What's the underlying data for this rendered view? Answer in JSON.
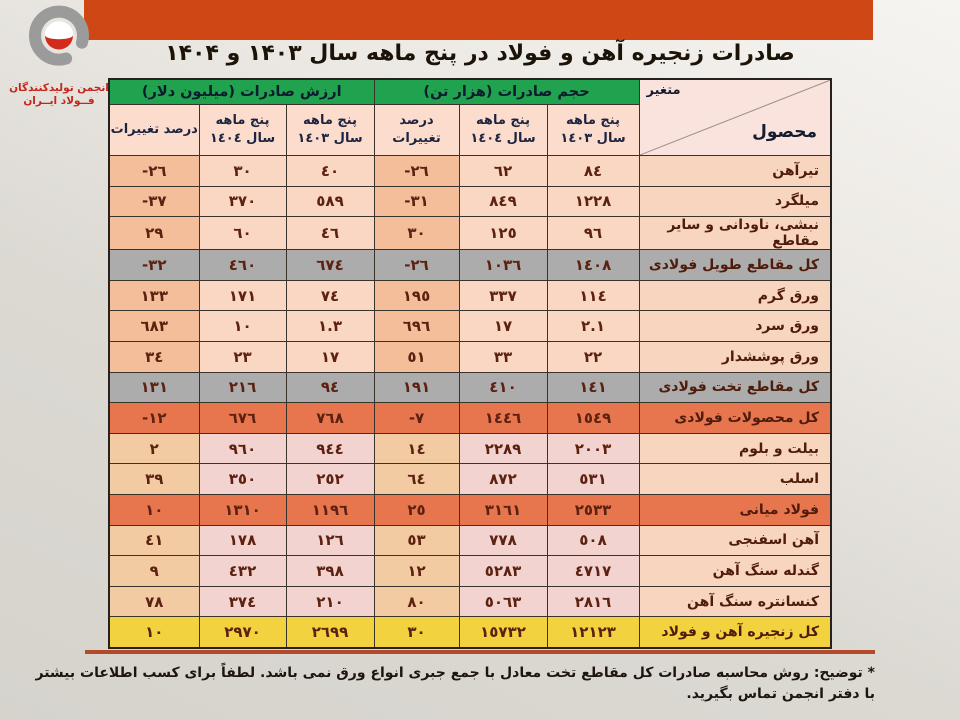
{
  "logo": {
    "line1": "انجمن تولیدکنندگان",
    "line2": "فــولاد ایــران"
  },
  "title": "صادرات زنجیره آهن و فولاد در پنج ماهه سال ۱۴۰۳ و ۱۴۰۴",
  "colors": {
    "banner_orange": "#ce4715",
    "header_green": "#21a24f",
    "subtotal_gray": "#acacac",
    "total_orange": "#e7764e",
    "grand_total_yellow": "#f2d23e",
    "cell_peach": "#f9d7c2",
    "cell_pct_orange": "#f4be9a"
  },
  "table": {
    "corner": {
      "variable": "متغیر",
      "product": "محصول"
    },
    "groups": [
      {
        "label": "حجم صادرات (هزار تن)"
      },
      {
        "label": "ارزش صادرات (میلیون دلار)"
      }
    ],
    "subheaders": {
      "period": "پنج ماهه",
      "year_1403": "سال ١٤٠٣",
      "year_1404": "سال ١٤٠٤",
      "pct": "درصد تغییرات"
    },
    "rows": [
      {
        "name": "تیرآهن",
        "vol_1403": "٨٤",
        "vol_1404": "٦٢",
        "vol_pct": "-٢٦",
        "val_1403": "٤٠",
        "val_1404": "٣٠",
        "val_pct": "-٢٦",
        "style": "regular"
      },
      {
        "name": "میلگرد",
        "vol_1403": "١٢٢٨",
        "vol_1404": "٨٤٩",
        "vol_pct": "-٣١",
        "val_1403": "٥٨٩",
        "val_1404": "٣٧٠",
        "val_pct": "-٣٧",
        "style": "regular"
      },
      {
        "name": "نبشی، ناودانی و سایر مقاطع",
        "vol_1403": "٩٦",
        "vol_1404": "١٢٥",
        "vol_pct": "٣٠",
        "val_1403": "٤٦",
        "val_1404": "٦٠",
        "val_pct": "٢٩",
        "style": "regular"
      },
      {
        "name": "کل مقاطع طویل فولادی",
        "vol_1403": "١٤٠٨",
        "vol_1404": "١٠٣٦",
        "vol_pct": "-٢٦",
        "val_1403": "٦٧٤",
        "val_1404": "٤٦٠",
        "val_pct": "-٣٢",
        "style": "gray"
      },
      {
        "name": "ورق گرم",
        "vol_1403": "١١٤",
        "vol_1404": "٣٣٧",
        "vol_pct": "١٩٥",
        "val_1403": "٧٤",
        "val_1404": "١٧١",
        "val_pct": "١٣٣",
        "style": "regular"
      },
      {
        "name": "ورق سرد",
        "vol_1403": "٢.١",
        "vol_1404": "١٧",
        "vol_pct": "٦٩٦",
        "val_1403": "١.٣",
        "val_1404": "١٠",
        "val_pct": "٦٨٣",
        "style": "regular"
      },
      {
        "name": "ورق پوششدار",
        "vol_1403": "٢٢",
        "vol_1404": "٣٣",
        "vol_pct": "٥١",
        "val_1403": "١٧",
        "val_1404": "٢٣",
        "val_pct": "٣٤",
        "style": "regular"
      },
      {
        "name": "کل مقاطع تخت فولادی",
        "vol_1403": "١٤١",
        "vol_1404": "٤١٠",
        "vol_pct": "١٩١",
        "val_1403": "٩٤",
        "val_1404": "٢١٦",
        "val_pct": "١٣١",
        "style": "gray"
      },
      {
        "name": "کل محصولات فولادی",
        "vol_1403": "١٥٤٩",
        "vol_1404": "١٤٤٦",
        "vol_pct": "-٧",
        "val_1403": "٧٦٨",
        "val_1404": "٦٧٦",
        "val_pct": "-١٢",
        "style": "orange"
      },
      {
        "name": "بیلت و بلوم",
        "vol_1403": "٢٠٠٣",
        "vol_1404": "٢٢٨٩",
        "vol_pct": "١٤",
        "val_1403": "٩٤٤",
        "val_1404": "٩٦٠",
        "val_pct": "٢",
        "style": "pink"
      },
      {
        "name": "اسلب",
        "vol_1403": "٥٣١",
        "vol_1404": "٨٧٢",
        "vol_pct": "٦٤",
        "val_1403": "٢٥٢",
        "val_1404": "٣٥٠",
        "val_pct": "٣٩",
        "style": "pink"
      },
      {
        "name": "فولاد میانی",
        "vol_1403": "٢٥٣٣",
        "vol_1404": "٣١٦١",
        "vol_pct": "٢٥",
        "val_1403": "١١٩٦",
        "val_1404": "١٣١٠",
        "val_pct": "١٠",
        "style": "orange"
      },
      {
        "name": "آهن اسفنجی",
        "vol_1403": "٥٠٨",
        "vol_1404": "٧٧٨",
        "vol_pct": "٥٣",
        "val_1403": "١٢٦",
        "val_1404": "١٧٨",
        "val_pct": "٤١",
        "style": "pink"
      },
      {
        "name": "گندله سنگ آهن",
        "vol_1403": "٤٧١٧",
        "vol_1404": "٥٢٨٣",
        "vol_pct": "١٢",
        "val_1403": "٣٩٨",
        "val_1404": "٤٣٢",
        "val_pct": "٩",
        "style": "pink"
      },
      {
        "name": "کنسانتره سنگ آهن",
        "vol_1403": "٢٨١٦",
        "vol_1404": "٥٠٦٣",
        "vol_pct": "٨٠",
        "val_1403": "٢١٠",
        "val_1404": "٣٧٤",
        "val_pct": "٧٨",
        "style": "pink"
      },
      {
        "name": "کل زنجیره آهن و فولاد",
        "vol_1403": "١٢١٢٣",
        "vol_1404": "١٥٧٣٢",
        "vol_pct": "٣٠",
        "val_1403": "٢٦٩٩",
        "val_1404": "٢٩٧٠",
        "val_pct": "١٠",
        "style": "yellow"
      }
    ]
  },
  "footnote": {
    "label": "* توضیح:",
    "text": "روش محاسبه صادرات کل مقاطع تخت معادل با جمع جبری انواع ورق نمی باشد. لطفاً برای کسب اطلاعات بیشتر با دفتر انجمن تماس بگیرید."
  }
}
